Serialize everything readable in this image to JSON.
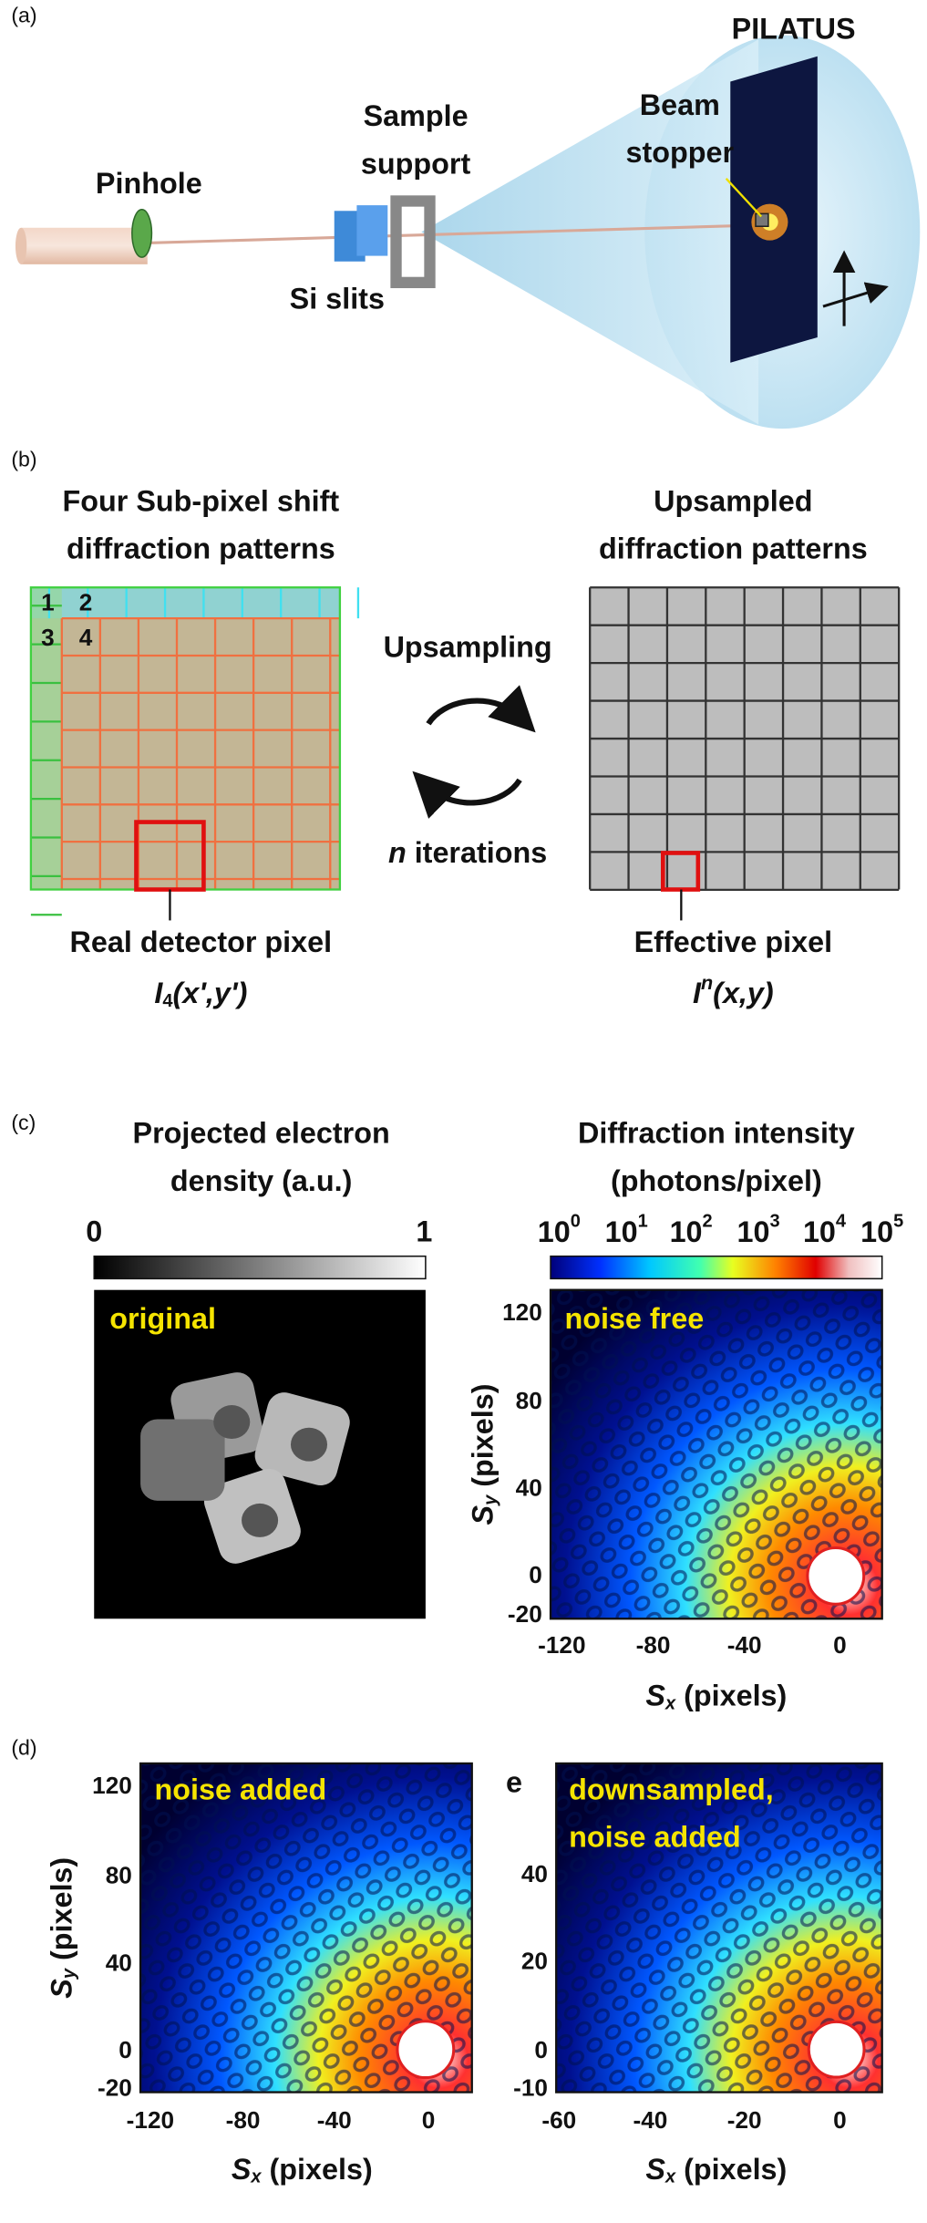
{
  "panel_a": {
    "label": "(a)",
    "detector": "PILATUS",
    "pinhole": "Pinhole",
    "sample_support": [
      "Sample",
      "support"
    ],
    "si_slits": "Si slits",
    "beam_stopper": [
      "Beam",
      "stopper"
    ]
  },
  "panel_b": {
    "label": "(b)",
    "left_title": [
      "Four Sub-pixel shift",
      "diffraction patterns"
    ],
    "sub_pixel_numbers": [
      "1",
      "2",
      "3",
      "4"
    ],
    "upsampling": "Upsampling",
    "iterations": {
      "symbol": "n",
      "text": " iterations"
    },
    "right_title": [
      "Upsampled",
      "diffraction patterns"
    ],
    "real_pixel": {
      "label": "Real detector pixel",
      "symbol": "I",
      "subscript": "4",
      "args": "(x',y')"
    },
    "effective_pixel": {
      "label": "Effective pixel",
      "symbol": "I",
      "superscript": "n",
      "args": "(x,y)"
    }
  },
  "panel_c": {
    "label": "(c)",
    "left": {
      "title": [
        "Projected electron",
        "density (a.u.)"
      ],
      "colorbar_ticks": [
        "0",
        "1"
      ],
      "tag": "original"
    },
    "right": {
      "title": [
        "Diffraction intensity",
        "(photons/pixel)"
      ],
      "colorbar_ticks": [
        {
          "base": "10",
          "exponent": "0"
        },
        {
          "base": "10",
          "exponent": "1"
        },
        {
          "base": "10",
          "exponent": "2"
        },
        {
          "base": "10",
          "exponent": "3"
        },
        {
          "base": "10",
          "exponent": "4"
        },
        {
          "base": "10",
          "exponent": "5"
        }
      ],
      "tag": [
        "noise free"
      ],
      "yticks": [
        "120",
        "80",
        "40",
        "0",
        "-20"
      ],
      "xticks": [
        "-120",
        "-80",
        "-40",
        "0"
      ],
      "ylabel": {
        "symbol": "S",
        "subscript": "y",
        "unit": " (pixels)"
      },
      "xlabel": {
        "symbol": "S",
        "subscript": "x",
        "unit": " (pixels)"
      }
    }
  },
  "panel_d": {
    "label": "(d)",
    "left": {
      "tag": [
        "noise added"
      ],
      "yticks": [
        "120",
        "80",
        "40",
        "0",
        "-20"
      ],
      "xticks": [
        "-120",
        "-80",
        "-40",
        "0"
      ],
      "ylabel": {
        "symbol": "S",
        "subscript": "y",
        "unit": " (pixels)"
      },
      "xlabel": {
        "symbol": "S",
        "subscript": "x",
        "unit": " (pixels)"
      }
    },
    "right": {
      "panel_label": "e",
      "tag": [
        "downsampled,",
        "noise added"
      ],
      "yticks": [
        "40",
        "20",
        "0",
        "-10"
      ],
      "xticks": [
        "-60",
        "-40",
        "-20",
        "0"
      ],
      "xlabel": {
        "symbol": "S",
        "subscript": "x",
        "unit": " (pixels)"
      }
    }
  }
}
